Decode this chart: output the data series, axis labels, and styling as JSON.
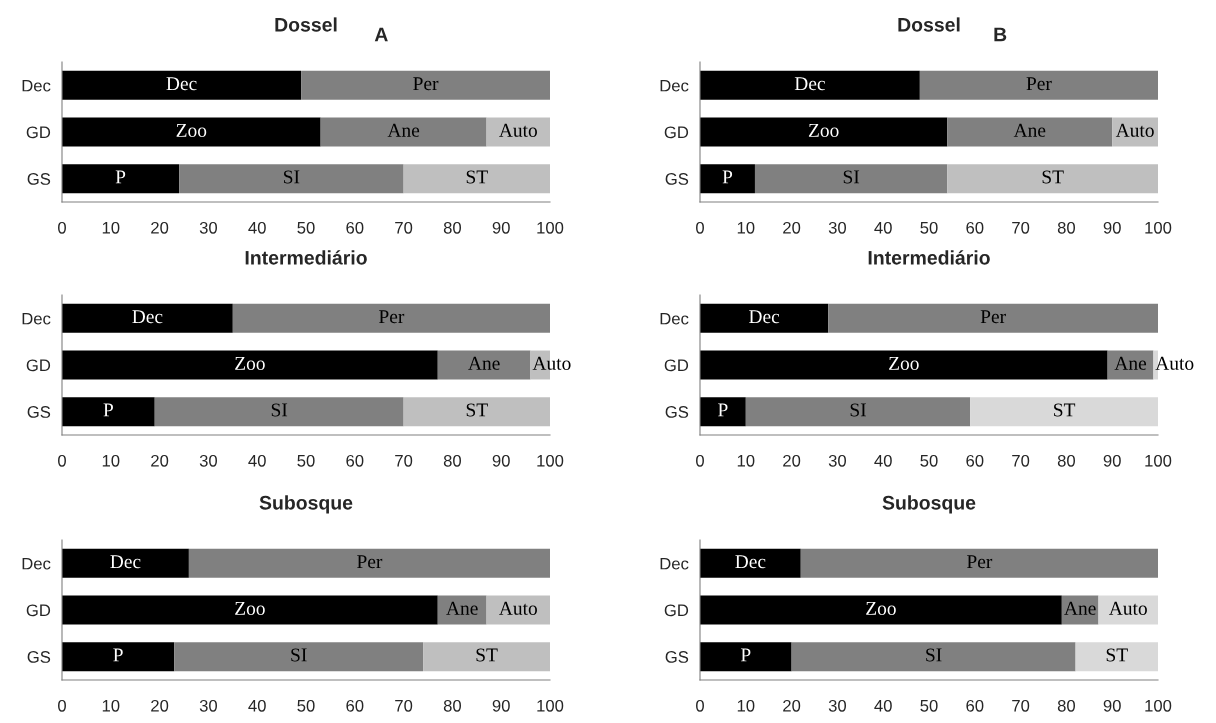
{
  "chart_data": [
    {
      "type": "bar",
      "orientation": "horizontal",
      "stacked": true,
      "title": "Dossel",
      "annotations": [
        "A"
      ],
      "categories": [
        "Dec",
        "GD",
        "GS"
      ],
      "xlim": [
        0,
        100
      ],
      "xticks": [
        0,
        10,
        20,
        30,
        40,
        50,
        60,
        70,
        80,
        90,
        100
      ],
      "series": [
        {
          "color": "#000000",
          "values": [
            49,
            53,
            24
          ],
          "value_labels": [
            "Dec",
            "Zoo",
            "P"
          ]
        },
        {
          "color": "#808080",
          "values": [
            51,
            34,
            46
          ],
          "value_labels": [
            "Per",
            "Ane",
            "SI"
          ]
        },
        {
          "color": "#bfbfbf",
          "values": [
            null,
            13,
            30
          ],
          "value_labels": [
            null,
            "Auto",
            "ST"
          ]
        }
      ]
    },
    {
      "type": "bar",
      "orientation": "horizontal",
      "stacked": true,
      "title": "Dossel",
      "annotations": [
        "B"
      ],
      "categories": [
        "Dec",
        "GD",
        "GS"
      ],
      "xlim": [
        0,
        100
      ],
      "xticks": [
        0,
        10,
        20,
        30,
        40,
        50,
        60,
        70,
        80,
        90,
        100
      ],
      "series": [
        {
          "color": "#000000",
          "values": [
            48,
            54,
            12
          ],
          "value_labels": [
            "Dec",
            "Zoo",
            "P"
          ]
        },
        {
          "color": "#808080",
          "values": [
            52,
            36,
            42
          ],
          "value_labels": [
            "Per",
            "Ane",
            "SI"
          ]
        },
        {
          "color": "#bfbfbf",
          "values": [
            null,
            10,
            46
          ],
          "value_labels": [
            null,
            "Auto",
            "ST"
          ]
        }
      ]
    },
    {
      "type": "bar",
      "orientation": "horizontal",
      "stacked": true,
      "title": "Intermediário",
      "categories": [
        "Dec",
        "GD",
        "GS"
      ],
      "xlim": [
        0,
        100
      ],
      "xticks": [
        0,
        10,
        20,
        30,
        40,
        50,
        60,
        70,
        80,
        90,
        100
      ],
      "series": [
        {
          "color": "#000000",
          "values": [
            35,
            77,
            19
          ],
          "value_labels": [
            "Dec",
            "Zoo",
            "P"
          ]
        },
        {
          "color": "#808080",
          "values": [
            65,
            19,
            51
          ],
          "value_labels": [
            "Per",
            "Ane",
            "SI"
          ]
        },
        {
          "color": "#bfbfbf",
          "values": [
            null,
            4,
            30
          ],
          "value_labels": [
            null,
            "Auto",
            "ST"
          ]
        }
      ]
    },
    {
      "type": "bar",
      "orientation": "horizontal",
      "stacked": true,
      "title": "Intermediário",
      "categories": [
        "Dec",
        "GD",
        "GS"
      ],
      "xlim": [
        0,
        100
      ],
      "xticks": [
        0,
        10,
        20,
        30,
        40,
        50,
        60,
        70,
        80,
        90,
        100
      ],
      "series": [
        {
          "color": "#000000",
          "values": [
            28,
            89,
            10
          ],
          "value_labels": [
            "Dec",
            "Zoo",
            "P"
          ]
        },
        {
          "color": "#808080",
          "values": [
            72,
            10,
            49
          ],
          "value_labels": [
            "Per",
            "Ane",
            "SI"
          ]
        },
        {
          "color": "#d9d9d9",
          "values": [
            null,
            1,
            41
          ],
          "value_labels": [
            null,
            "Auto",
            "ST"
          ]
        }
      ]
    },
    {
      "type": "bar",
      "orientation": "horizontal",
      "stacked": true,
      "title": "Subosque",
      "categories": [
        "Dec",
        "GD",
        "GS"
      ],
      "xlim": [
        0,
        100
      ],
      "xticks": [
        0,
        10,
        20,
        30,
        40,
        50,
        60,
        70,
        80,
        90,
        100
      ],
      "series": [
        {
          "color": "#000000",
          "values": [
            26,
            77,
            23
          ],
          "value_labels": [
            "Dec",
            "Zoo",
            "P"
          ]
        },
        {
          "color": "#808080",
          "values": [
            74,
            10,
            51
          ],
          "value_labels": [
            "Per",
            "Ane",
            "SI"
          ]
        },
        {
          "color": "#bfbfbf",
          "values": [
            null,
            13,
            26
          ],
          "value_labels": [
            null,
            "Auto",
            "ST"
          ]
        }
      ]
    },
    {
      "type": "bar",
      "orientation": "horizontal",
      "stacked": true,
      "title": "Subosque",
      "categories": [
        "Dec",
        "GD",
        "GS"
      ],
      "xlim": [
        0,
        100
      ],
      "xticks": [
        0,
        10,
        20,
        30,
        40,
        50,
        60,
        70,
        80,
        90,
        100
      ],
      "series": [
        {
          "color": "#000000",
          "values": [
            22,
            79,
            20
          ],
          "value_labels": [
            "Dec",
            "Zoo",
            "P"
          ]
        },
        {
          "color": "#808080",
          "values": [
            78,
            8,
            62
          ],
          "value_labels": [
            "Per",
            "Ane",
            "SI"
          ]
        },
        {
          "color": "#d9d9d9",
          "values": [
            null,
            13,
            18
          ],
          "value_labels": [
            null,
            "Auto",
            "ST"
          ]
        }
      ]
    }
  ]
}
